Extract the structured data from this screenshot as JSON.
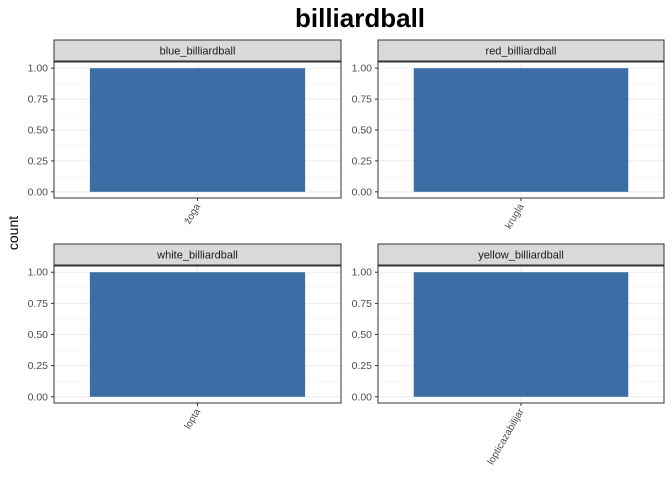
{
  "chart_data": {
    "type": "bar",
    "title": "billiardball",
    "xlabel": "",
    "ylabel": "count",
    "ylim": [
      0,
      1.0
    ],
    "y_ticks": [
      "0.00",
      "0.25",
      "0.50",
      "0.75",
      "1.00"
    ],
    "grid": true,
    "bar_color": "#3a6ea5",
    "panels": [
      {
        "strip": "blue_billiardball",
        "categories": [
          "žoga"
        ],
        "values": [
          1
        ]
      },
      {
        "strip": "red_billiardball",
        "categories": [
          "krugla"
        ],
        "values": [
          1
        ]
      },
      {
        "strip": "white_billiardball",
        "categories": [
          "lopta"
        ],
        "values": [
          1
        ]
      },
      {
        "strip": "yellow_billiardball",
        "categories": [
          "lopticazabilijar"
        ],
        "values": [
          1
        ]
      }
    ]
  }
}
